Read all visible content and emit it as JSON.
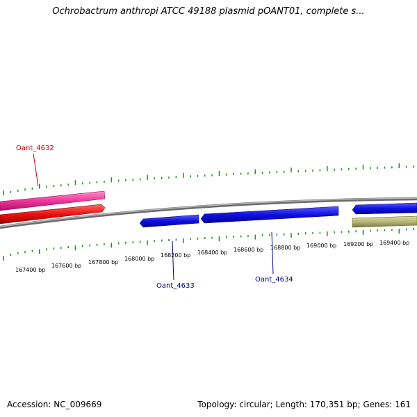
{
  "title": "Ochrobactrum anthropi ATCC 49188 plasmid pOANT01, complete s...",
  "footer": {
    "accession": "Accession: NC_009669",
    "summary": "Topology: circular; Length: 170,351 bp; Genes: 161"
  },
  "colors": {
    "backbone": "#8a8a8a",
    "tick": "#2e8b2e",
    "gene_blue": "#1010e0",
    "gene_red": "#ee1111",
    "gene_pink": "#f0359a",
    "gene_olive": "#b8b878",
    "label_red": "#cc0000",
    "label_blue": "#00008b"
  },
  "map": {
    "ticks": [
      "167400 bp",
      "167600 bp",
      "167800 bp",
      "168000 bp",
      "168200 bp",
      "168400 bp",
      "168600 bp",
      "168800 bp",
      "169000 bp",
      "169200 bp",
      "169400 bp"
    ],
    "gene_labels": [
      {
        "text": "Oant_4632",
        "color": "label_red"
      },
      {
        "text": "Oant_4633",
        "color": "label_blue"
      },
      {
        "text": "Oant_4634",
        "color": "label_blue"
      }
    ]
  }
}
